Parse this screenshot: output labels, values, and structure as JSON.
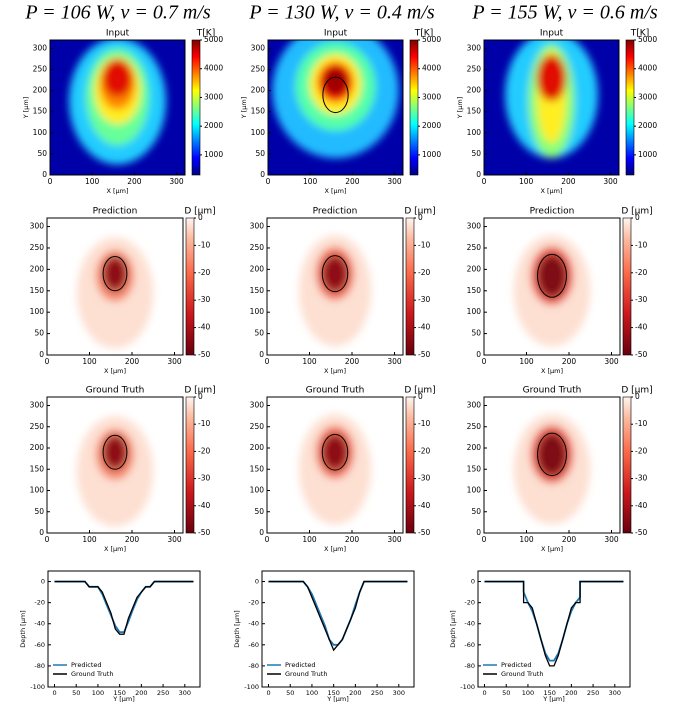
{
  "titles": [
    "P = 106 W, v = 0.7 m/s",
    "P = 130 W, v = 0.4 m/s",
    "P = 155 W, v = 0.6 m/s"
  ],
  "chart_data": [
    {
      "type": "heatmap",
      "title": "Input",
      "xlabel": "X [μm]",
      "ylabel": "Y [μm]",
      "xlim": [
        0,
        320
      ],
      "ylim": [
        0,
        320
      ],
      "xticks": [
        0,
        100,
        200,
        300
      ],
      "yticks": [
        0,
        50,
        100,
        150,
        200,
        250,
        300
      ],
      "colorbar": {
        "label": "T[K]",
        "lim": [
          300,
          5000
        ],
        "ticks": [
          1000,
          2000,
          3000,
          4000,
          5000
        ]
      }
    },
    {
      "type": "heatmap",
      "title": "Prediction",
      "xlabel": "X [μm]",
      "xlim": [
        0,
        320
      ],
      "ylim": [
        0,
        320
      ],
      "xticks": [
        0,
        100,
        200,
        300
      ],
      "yticks": [
        0,
        50,
        100,
        150,
        200,
        250,
        300
      ],
      "colorbar": {
        "label": "D [μm]",
        "lim": [
          -50,
          0
        ],
        "ticks": [
          0,
          -10,
          -20,
          -30,
          -40,
          -50
        ]
      }
    },
    {
      "type": "heatmap",
      "title": "Ground Truth",
      "xlabel": "X [μm]",
      "xlim": [
        0,
        320
      ],
      "ylim": [
        0,
        320
      ],
      "xticks": [
        0,
        100,
        200,
        300
      ],
      "yticks": [
        0,
        50,
        100,
        150,
        200,
        250,
        300
      ],
      "colorbar": {
        "label": "D [μm]",
        "lim": [
          -50,
          0
        ],
        "ticks": [
          0,
          -10,
          -20,
          -30,
          -40,
          -50
        ]
      }
    },
    {
      "type": "line",
      "xlabel": "Y [μm]",
      "ylabel": "Depth [μm]",
      "xlim": [
        -15,
        335
      ],
      "ylim": [
        -100,
        10
      ],
      "xticks": [
        0,
        50,
        100,
        150,
        200,
        250,
        300
      ],
      "yticks": [
        -100,
        -80,
        -60,
        -40,
        -20,
        0
      ],
      "legend": "lower left",
      "x": [
        0,
        70,
        80,
        90,
        100,
        110,
        120,
        130,
        140,
        150,
        160,
        170,
        180,
        190,
        200,
        210,
        220,
        230,
        320
      ],
      "series": [
        {
          "name": "Predicted",
          "color": "#1f77b4",
          "values": [
            0,
            0,
            -5,
            -5,
            -5,
            -12,
            -22,
            -32,
            -42,
            -48,
            -48,
            -38,
            -27,
            -17,
            -10,
            -5,
            -5,
            0,
            0
          ]
        },
        {
          "name": "Ground Truth",
          "color": "#000000",
          "values": [
            0,
            0,
            -5,
            -5,
            -5,
            -10,
            -20,
            -30,
            -45,
            -50,
            -50,
            -35,
            -25,
            -15,
            -10,
            -5,
            -5,
            0,
            0
          ]
        }
      ]
    },
    {
      "type": "heatmap",
      "title": "Input",
      "xlabel": "X [μm]",
      "ylabel": "Y [μm]",
      "xlim": [
        0,
        320
      ],
      "ylim": [
        0,
        320
      ],
      "xticks": [
        0,
        100,
        200,
        300
      ],
      "yticks": [
        0,
        50,
        100,
        150,
        200,
        250,
        300
      ],
      "colorbar": {
        "label": "T[K]",
        "lim": [
          300,
          5000
        ],
        "ticks": [
          1000,
          2000,
          3000,
          4000,
          5000
        ]
      }
    },
    {
      "type": "heatmap",
      "title": "Prediction",
      "xlabel": "X [μm]",
      "xlim": [
        0,
        320
      ],
      "ylim": [
        0,
        320
      ],
      "xticks": [
        0,
        100,
        200,
        300
      ],
      "yticks": [
        0,
        50,
        100,
        150,
        200,
        250,
        300
      ],
      "colorbar": {
        "label": "D [μm]",
        "lim": [
          -50,
          0
        ],
        "ticks": [
          0,
          -10,
          -20,
          -30,
          -40,
          -50
        ]
      }
    },
    {
      "type": "heatmap",
      "title": "Ground Truth",
      "xlabel": "X [μm]",
      "xlim": [
        0,
        320
      ],
      "ylim": [
        0,
        320
      ],
      "xticks": [
        0,
        100,
        200,
        300
      ],
      "yticks": [
        0,
        50,
        100,
        150,
        200,
        250,
        300
      ],
      "colorbar": {
        "label": "D [μm]",
        "lim": [
          -50,
          0
        ],
        "ticks": [
          0,
          -10,
          -20,
          -30,
          -40,
          -50
        ]
      }
    },
    {
      "type": "line",
      "xlabel": "Y [μm]",
      "ylabel": "Depth [μm]",
      "xlim": [
        -15,
        335
      ],
      "ylim": [
        -100,
        10
      ],
      "xticks": [
        0,
        50,
        100,
        150,
        200,
        250,
        300
      ],
      "yticks": [
        -100,
        -80,
        -60,
        -40,
        -20,
        0
      ],
      "legend": "lower left",
      "x": [
        0,
        80,
        90,
        100,
        110,
        120,
        130,
        140,
        150,
        160,
        170,
        180,
        190,
        200,
        210,
        220,
        320
      ],
      "series": [
        {
          "name": "Predicted",
          "color": "#1f77b4",
          "values": [
            0,
            0,
            -5,
            -12,
            -22,
            -32,
            -42,
            -55,
            -60,
            -60,
            -55,
            -45,
            -35,
            -22,
            -10,
            0,
            0
          ]
        },
        {
          "name": "Ground Truth",
          "color": "#000000",
          "values": [
            0,
            0,
            -5,
            -15,
            -25,
            -35,
            -45,
            -55,
            -65,
            -60,
            -55,
            -45,
            -35,
            -25,
            -10,
            0,
            0
          ]
        }
      ]
    },
    {
      "type": "heatmap",
      "title": "Input",
      "xlabel": "X [μm]",
      "ylabel": "Y [μm]",
      "xlim": [
        0,
        320
      ],
      "ylim": [
        0,
        320
      ],
      "xticks": [
        0,
        100,
        200,
        300
      ],
      "yticks": [
        0,
        50,
        100,
        150,
        200,
        250,
        300
      ],
      "colorbar": {
        "label": "T[K]",
        "lim": [
          300,
          5000
        ],
        "ticks": [
          1000,
          2000,
          3000,
          4000,
          5000
        ]
      }
    },
    {
      "type": "heatmap",
      "title": "Prediction",
      "xlabel": "X [μm]",
      "xlim": [
        0,
        320
      ],
      "ylim": [
        0,
        320
      ],
      "xticks": [
        0,
        100,
        200,
        300
      ],
      "yticks": [
        0,
        50,
        100,
        150,
        200,
        250,
        300
      ],
      "colorbar": {
        "label": "D [μm]",
        "lim": [
          -50,
          0
        ],
        "ticks": [
          0,
          -10,
          -20,
          -30,
          -40,
          -50
        ]
      }
    },
    {
      "type": "heatmap",
      "title": "Ground Truth",
      "xlabel": "X [μm]",
      "xlim": [
        0,
        320
      ],
      "ylim": [
        0,
        320
      ],
      "xticks": [
        0,
        100,
        200,
        300
      ],
      "yticks": [
        0,
        50,
        100,
        150,
        200,
        250,
        300
      ],
      "colorbar": {
        "label": "D [μm]",
        "lim": [
          -50,
          0
        ],
        "ticks": [
          0,
          -10,
          -20,
          -30,
          -40,
          -50
        ]
      }
    },
    {
      "type": "line",
      "xlabel": "Y [μm]",
      "ylabel": "Depth [μm]",
      "xlim": [
        -15,
        335
      ],
      "ylim": [
        -100,
        10
      ],
      "xticks": [
        0,
        50,
        100,
        150,
        200,
        250,
        300
      ],
      "yticks": [
        -100,
        -80,
        -60,
        -40,
        -20,
        0
      ],
      "legend": "lower left",
      "x": [
        0,
        90,
        90,
        100,
        110,
        120,
        130,
        140,
        150,
        160,
        170,
        180,
        190,
        200,
        210,
        220,
        220,
        320
      ],
      "series": [
        {
          "name": "Predicted",
          "color": "#1f77b4",
          "values": [
            0,
            0,
            -10,
            -20,
            -28,
            -40,
            -55,
            -68,
            -75,
            -75,
            -68,
            -55,
            -40,
            -28,
            -20,
            -15,
            0,
            0
          ]
        },
        {
          "name": "Ground Truth",
          "color": "#000000",
          "values": [
            0,
            0,
            -20,
            -20,
            -25,
            -40,
            -55,
            -70,
            -80,
            -80,
            -70,
            -55,
            -40,
            -25,
            -20,
            -20,
            0,
            0
          ]
        }
      ]
    }
  ]
}
